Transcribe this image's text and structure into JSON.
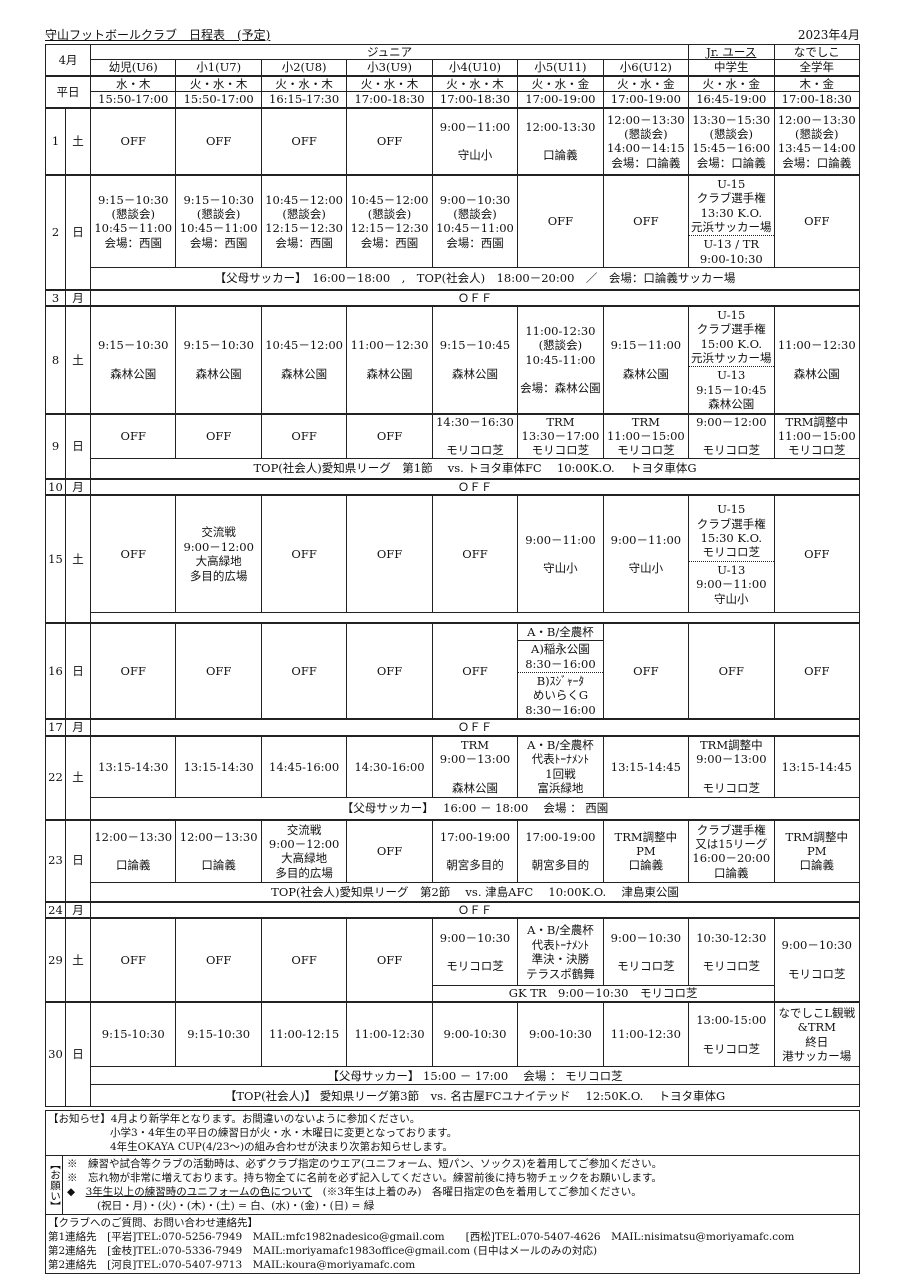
{
  "header": {
    "title": "守山フットボールクラブ　日程表　(予定)",
    "month": "2023年4月"
  },
  "table_head": {
    "corner": "4月",
    "junior": "ジュニア",
    "jr_youth": "Jr. ユース",
    "nadeshiko": "なでしこ",
    "weekday_label": "平日",
    "groups": [
      "幼児(U6)",
      "小1(U7)",
      "小2(U8)",
      "小3(U9)",
      "小4(U10)",
      "小5(U11)",
      "小6(U12)",
      "中学生",
      "全学年"
    ],
    "weekdays": [
      "水・木",
      "火・水・木",
      "火・水・木",
      "火・水・木",
      "火・水・木",
      "火・水・金",
      "火・水・金",
      "火・水・金",
      "木・金"
    ],
    "times": [
      "15:50-17:00",
      "15:50-17:00",
      "16:15-17:30",
      "17:00-18:30",
      "17:00-18:30",
      "17:00-19:00",
      "17:00-19:00",
      "16:45-19:00",
      "17:00-18:30"
    ]
  },
  "rows": [
    {
      "date": "1",
      "day": "土",
      "cells": [
        "OFF",
        "OFF",
        "OFF",
        "OFF",
        "9:00－11:00\n\n守山小",
        "12:00-13:30\n\n口論義",
        "12:00－13:30\n(懇談会)\n14:00－14:15\n会場：口論義",
        "13:30－15:30\n(懇談会)\n15:45－16:00\n会場：口論義",
        "12:00－13:30\n(懇談会)\n13:45－14:00\n会場：口論義"
      ],
      "subs": []
    },
    {
      "date": "2",
      "day": "日",
      "cells": [
        "9:15－10:30\n(懇談会)\n10:45－11:00\n会場：西園",
        "9:15－10:30\n(懇談会)\n10:45－11:00\n会場：西園",
        "10:45－12:00\n(懇談会)\n12:15－12:30\n会場：西園",
        "10:45－12:00\n(懇談会)\n12:15－12:30\n会場：西園",
        "9:00－10:30\n(懇談会)\n10:45－11:00\n会場：西園",
        "OFF",
        "OFF",
        [
          "U-15\nクラブ選手権\n13:30 K.O.\n元浜サッカー場",
          "U-13 / TR\n9:00-10:30"
        ],
        "OFF"
      ],
      "subs": [
        "【父母サッカー】　16:00－18:00　,　TOP(社会人)　18:00－20:00　／　会場：口論義サッカー場"
      ]
    },
    {
      "date": "3",
      "day": "月",
      "full": "ＯＦＦ"
    },
    {
      "date": "8",
      "day": "土",
      "cells": [
        "9:15－10:30\n\n森林公園",
        "9:15－10:30\n\n森林公園",
        "10:45－12:00\n\n森林公園",
        "11:00－12:30\n\n森林公園",
        "9:15－10:45\n\n森林公園",
        "11:00-12:30\n(懇談会)\n10:45-11:00\n\n会場：森林公園",
        "9:15－11:00\n\n森林公園",
        [
          "U-15\nクラブ選手権\n15:00 K.O.\n元浜サッカー場",
          "U-13\n9:15－10:45\n森林公園"
        ],
        "11:00－12:30\n\n森林公園"
      ],
      "subs": []
    },
    {
      "date": "9",
      "day": "日",
      "cells": [
        "OFF",
        "OFF",
        "OFF",
        "OFF",
        "14:30－16:30\n\nモリコロ芝",
        "TRM\n13:30－17:00\nモリコロ芝",
        "TRM\n11:00－15:00\nモリコロ芝",
        "9:00－12:00\n\nモリコロ芝",
        "TRM調整中\n11:00－15:00\nモリコロ芝"
      ],
      "subs": [
        "TOP(社会人)愛知県リーグ　第1節　 vs. トヨタ車体FC　 10:00K.O.　 トヨタ車体G"
      ]
    },
    {
      "date": "10",
      "day": "月",
      "full": "ＯＦＦ"
    },
    {
      "date": "15",
      "day": "土",
      "cells": [
        "OFF",
        "交流戦\n9:00－12:00\n大高緑地\n多目的広場",
        "OFF",
        "OFF",
        "OFF",
        "9:00－11:00\n\n守山小",
        "9:00－11:00\n\n守山小",
        [
          "U-15\nクラブ選手権\n15:30 K.O.\nモリコロ芝",
          "U-13\n9:00－11:00\n守山小"
        ],
        "OFF"
      ],
      "subs": [
        ""
      ]
    },
    {
      "date": "16",
      "day": "日",
      "cells": [
        "OFF",
        "OFF",
        "OFF",
        "OFF",
        "OFF",
        [
          "A・B/全農杯",
          "A)稲永公園\n8:30－16:00",
          "B)ｽｼﾞｬｰﾀ\nめいらくG\n8:30－16:00"
        ],
        "OFF",
        "OFF",
        "OFF"
      ],
      "subs": []
    },
    {
      "date": "17",
      "day": "月",
      "full": "ＯＦＦ"
    },
    {
      "date": "22",
      "day": "土",
      "cells": [
        "13:15-14:30",
        "13:15-14:30",
        "14:45-16:00",
        "14:30-16:00",
        "TRM\n9:00－13:00\n\n森林公園",
        "A・B/全農杯\n代表ﾄｰﾅﾒﾝﾄ\n1回戦\n富浜緑地",
        "13:15-14:45",
        "TRM調整中\n9:00－13:00\n\nモリコロ芝",
        "13:15-14:45"
      ],
      "subs": [
        "【父母サッカー】　 16:00 － 18:00　 会場 ： 西園"
      ]
    },
    {
      "date": "23",
      "day": "日",
      "cells": [
        "12:00－13:30\n\n口論義",
        "12:00－13:30\n\n口論義",
        "交流戦\n9:00－12:00\n大高緑地\n多目的広場",
        "OFF",
        "17:00-19:00\n\n朝宮多目的",
        "17:00-19:00\n\n朝宮多目的",
        "TRM調整中\nPM\n口論義",
        "クラブ選手権\n又は15リーグ\n16:00－20:00\n口論義",
        "TRM調整中\nPM\n口論義"
      ],
      "subs": [
        "TOP(社会人)愛知県リーグ　第2節　 vs. 津島AFC　 10:00K.O.　 津島東公園"
      ]
    },
    {
      "date": "24",
      "day": "月",
      "full": "ＯＦＦ"
    },
    {
      "date": "29",
      "day": "土",
      "cells": [
        "OFF",
        "OFF",
        "OFF",
        "OFF",
        "9:00－10:30\n\nモリコロ芝",
        "A・B/全農杯\n代表ﾄｰﾅﾒﾝﾄ\n準決・決勝\nテラスポ鶴舞",
        "9:00－10:30\n\nモリコロ芝",
        "10:30-12:30\n\nモリコロ芝",
        "9:00－10:30\n\nモリコロ芝"
      ],
      "gk": "GK TR　9:00－10:30　モリコロ芝",
      "subs": []
    },
    {
      "date": "30",
      "day": "日",
      "cells": [
        "9:15-10:30",
        "9:15-10:30",
        "11:00-12:15",
        "11:00-12:30",
        "9:00-10:30",
        "9:00-10:30",
        "11:00-12:30",
        "13:00-15:00\n\nモリコロ芝",
        "なでしこL観戦\n&TRM\n終日\n港サッカー場"
      ],
      "subs": [
        "【父母サッカー】 15:00 － 17:00　 会場 ： モリコロ芝",
        "【TOP(社会人)】 愛知県リーグ第3節　vs. 名古屋FCユナイテッド　 12:50K.O.　 トヨタ車体G"
      ]
    }
  ],
  "notes": {
    "notice_label": "【お知らせ】",
    "notice": [
      "4月より新学年となります。お間違いのないように参加ください。",
      "小学3・4年生の平日の練習日が火・水・木曜日に変更となっております。",
      "4年生OKAYA CUP(4/23～)の組み合わせが決まり次第お知らせします。"
    ],
    "request_label": "【お願い】",
    "requests": [
      {
        "mark": "※",
        "text": "練習や試合等クラブの活動時は、必ずクラブ指定のウエア(ユニフォーム、短パン、ソックス)を着用してご参加ください。"
      },
      {
        "mark": "※",
        "text": "忘れ物が非常に増えております。持ち物全てに名前を必ず記入してください。練習前後に持ち物チェックをお願いします。"
      },
      {
        "mark": "◆",
        "text": "3年生以上の練習時のユニフォームの色について",
        "text2": "(※3年生は上着のみ)　各曜日指定の色を着用してご参加ください。"
      }
    ],
    "colors_line": "(祝日・月)・(火)・(木)・(土) = 白、(水)・(金)・(日) = 緑",
    "contact_title": "【クラブへのご質問、お問い合わせ連絡先】",
    "contacts": [
      "第1連絡先　[平岩]TEL:070-5256-7949　MAIL:mfc1982nadesico@gmail.com　　[西松]TEL:070-5407-4626　MAIL:nisimatsu@moriyamafc.com",
      "第2連絡先　[金枝]TEL:070-5336-7949　MAIL:moriyamafc1983office@gmail.com (日中はメールのみの対応)",
      "第2連絡先　[河良]TEL:070-5407-9713　MAIL:koura@moriyamafc.com"
    ]
  }
}
